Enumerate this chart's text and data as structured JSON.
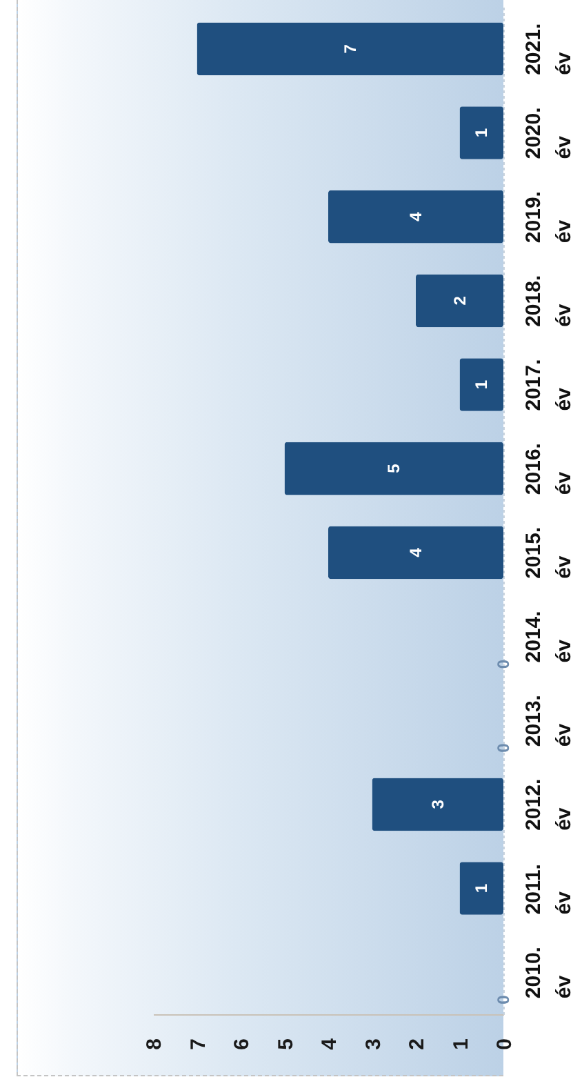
{
  "chart_data": {
    "type": "bar",
    "orientation": "horizontal",
    "categories": [
      "2021. év",
      "2020. év",
      "2019. év",
      "2018. év",
      "2017. év",
      "2016. év",
      "2015. év",
      "2014. év",
      "2013. év",
      "2012. év",
      "2011. év",
      "2010. év"
    ],
    "values": [
      7,
      1,
      4,
      2,
      1,
      5,
      4,
      0,
      0,
      3,
      1,
      0
    ],
    "color": "#1f4f7f",
    "xlim": [
      8,
      0
    ],
    "xticks": [
      0,
      1,
      2,
      3,
      4,
      5,
      6,
      7,
      8
    ],
    "data_labels": true
  }
}
